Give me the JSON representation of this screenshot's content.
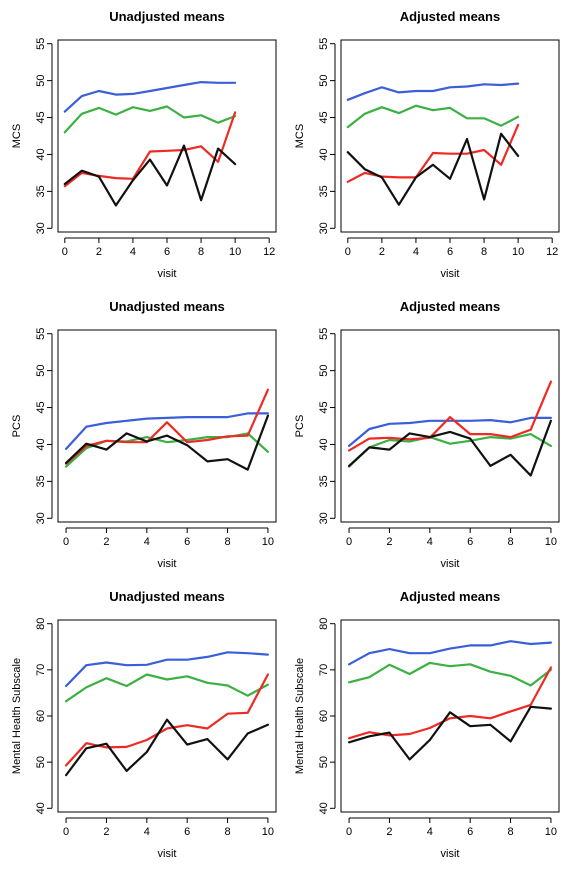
{
  "chart_data": [
    {
      "type": "line",
      "title": "Unadjusted means",
      "xlabel": "visit",
      "ylabel": "MCS",
      "xlim": [
        -0.4,
        12.4
      ],
      "ylim": [
        29.5,
        55.5
      ],
      "xticks": [
        0,
        2,
        4,
        6,
        8,
        10,
        12
      ],
      "yticks": [
        30,
        35,
        40,
        45,
        50,
        55
      ],
      "x": [
        0,
        1,
        2,
        3,
        4,
        5,
        6,
        7,
        8,
        9,
        10
      ],
      "grid": false,
      "series": [
        {
          "color": "#3a5fd9",
          "values": [
            45.8,
            47.9,
            48.6,
            48.1,
            48.2,
            48.6,
            49.0,
            49.4,
            49.8,
            49.7,
            49.7
          ]
        },
        {
          "color": "#3cb043",
          "values": [
            43.0,
            45.5,
            46.3,
            45.4,
            46.4,
            45.9,
            46.5,
            45.0,
            45.3,
            44.3,
            45.2
          ]
        },
        {
          "color": "#ee2a24",
          "values": [
            35.7,
            37.5,
            37.1,
            36.8,
            36.7,
            40.4,
            40.5,
            40.6,
            41.1,
            39.0,
            45.7
          ]
        },
        {
          "color": "#111111",
          "values": [
            36.0,
            37.8,
            37.0,
            33.1,
            36.5,
            39.3,
            35.8,
            41.2,
            33.8,
            40.8,
            38.7
          ]
        }
      ]
    },
    {
      "type": "line",
      "title": "Adjusted means",
      "xlabel": "visit",
      "ylabel": "MCS",
      "xlim": [
        -0.4,
        12.4
      ],
      "ylim": [
        29.5,
        55.5
      ],
      "xticks": [
        0,
        2,
        4,
        6,
        8,
        10,
        12
      ],
      "yticks": [
        30,
        35,
        40,
        45,
        50,
        55
      ],
      "x": [
        0,
        1,
        2,
        3,
        4,
        5,
        6,
        7,
        8,
        9,
        10
      ],
      "grid": false,
      "series": [
        {
          "color": "#3a5fd9",
          "values": [
            47.4,
            48.3,
            49.1,
            48.4,
            48.6,
            48.6,
            49.1,
            49.2,
            49.5,
            49.4,
            49.6
          ]
        },
        {
          "color": "#3cb043",
          "values": [
            43.7,
            45.5,
            46.4,
            45.6,
            46.6,
            46.0,
            46.3,
            44.9,
            44.9,
            43.9,
            45.1
          ]
        },
        {
          "color": "#ee2a24",
          "values": [
            36.3,
            37.5,
            37.0,
            36.9,
            36.9,
            40.2,
            40.1,
            40.1,
            40.6,
            38.6,
            44.0
          ]
        },
        {
          "color": "#111111",
          "values": [
            40.3,
            38.0,
            36.9,
            33.2,
            36.9,
            38.6,
            36.7,
            42.1,
            33.9,
            42.8,
            39.8
          ]
        }
      ]
    },
    {
      "type": "line",
      "title": "Unadjusted means",
      "xlabel": "visit",
      "ylabel": "PCS",
      "xlim": [
        -0.4,
        10.4
      ],
      "ylim": [
        29.5,
        55.5
      ],
      "xticks": [
        0,
        2,
        4,
        6,
        8,
        10
      ],
      "yticks": [
        30,
        35,
        40,
        45,
        50,
        55
      ],
      "x": [
        0,
        1,
        2,
        3,
        4,
        5,
        6,
        7,
        8,
        9,
        10
      ],
      "grid": false,
      "series": [
        {
          "color": "#3a5fd9",
          "values": [
            39.4,
            42.4,
            42.9,
            43.2,
            43.5,
            43.6,
            43.7,
            43.7,
            43.7,
            44.2,
            44.2
          ]
        },
        {
          "color": "#3cb043",
          "values": [
            37.0,
            39.5,
            40.5,
            40.4,
            41.0,
            40.3,
            40.6,
            41.0,
            41.0,
            41.5,
            39.0
          ]
        },
        {
          "color": "#ee2a24",
          "values": [
            37.4,
            39.8,
            40.5,
            40.3,
            40.3,
            43.0,
            40.3,
            40.6,
            41.1,
            41.2,
            47.4
          ]
        },
        {
          "color": "#111111",
          "values": [
            37.5,
            40.1,
            39.3,
            41.5,
            40.4,
            41.2,
            39.9,
            37.7,
            38.0,
            36.6,
            43.9
          ]
        }
      ]
    },
    {
      "type": "line",
      "title": "Adjusted means",
      "xlabel": "visit",
      "ylabel": "PCS",
      "xlim": [
        -0.4,
        10.4
      ],
      "ylim": [
        29.5,
        55.5
      ],
      "xticks": [
        0,
        2,
        4,
        6,
        8,
        10
      ],
      "yticks": [
        30,
        35,
        40,
        45,
        50,
        55
      ],
      "x": [
        0,
        1,
        2,
        3,
        4,
        5,
        6,
        7,
        8,
        9,
        10
      ],
      "grid": false,
      "series": [
        {
          "color": "#3a5fd9",
          "values": [
            39.8,
            42.1,
            42.8,
            42.9,
            43.2,
            43.2,
            43.2,
            43.3,
            43.0,
            43.6,
            43.6
          ]
        },
        {
          "color": "#3cb043",
          "values": [
            37.0,
            39.6,
            40.6,
            40.4,
            41.0,
            40.1,
            40.5,
            41.0,
            40.8,
            41.4,
            39.8
          ]
        },
        {
          "color": "#ee2a24",
          "values": [
            39.2,
            40.8,
            40.9,
            40.7,
            40.9,
            43.7,
            41.4,
            41.4,
            41.0,
            42.0,
            48.5
          ]
        },
        {
          "color": "#111111",
          "values": [
            37.1,
            39.6,
            39.3,
            41.5,
            41.0,
            41.7,
            40.8,
            37.1,
            38.6,
            35.8,
            43.2
          ]
        }
      ]
    },
    {
      "type": "line",
      "title": "Unadjusted means",
      "xlabel": "visit",
      "ylabel": "Mental Health Subscale",
      "xlim": [
        -0.4,
        10.4
      ],
      "ylim": [
        39.2,
        80.8
      ],
      "xticks": [
        0,
        2,
        4,
        6,
        8,
        10
      ],
      "yticks": [
        40,
        50,
        60,
        70,
        80
      ],
      "x": [
        0,
        1,
        2,
        3,
        4,
        5,
        6,
        7,
        8,
        9,
        10
      ],
      "grid": false,
      "series": [
        {
          "color": "#3a5fd9",
          "values": [
            66.5,
            71.0,
            71.6,
            71.0,
            71.1,
            72.2,
            72.2,
            72.8,
            73.8,
            73.6,
            73.3
          ]
        },
        {
          "color": "#3cb043",
          "values": [
            63.2,
            66.2,
            68.2,
            66.5,
            69.0,
            67.9,
            68.6,
            67.2,
            66.6,
            64.4,
            66.8
          ]
        },
        {
          "color": "#ee2a24",
          "values": [
            49.3,
            54.1,
            53.2,
            53.3,
            54.8,
            57.3,
            58.0,
            57.3,
            60.5,
            60.7,
            69.0
          ]
        },
        {
          "color": "#111111",
          "values": [
            47.2,
            53.0,
            54.0,
            48.1,
            52.2,
            59.2,
            53.8,
            55.0,
            50.6,
            56.2,
            58.1
          ]
        }
      ]
    },
    {
      "type": "line",
      "title": "Adjusted means",
      "xlabel": "visit",
      "ylabel": "Mental Health Subscale",
      "xlim": [
        -0.4,
        10.4
      ],
      "ylim": [
        39.2,
        80.8
      ],
      "xticks": [
        0,
        2,
        4,
        6,
        8,
        10
      ],
      "yticks": [
        40,
        50,
        60,
        70,
        80
      ],
      "x": [
        0,
        1,
        2,
        3,
        4,
        5,
        6,
        7,
        8,
        9,
        10
      ],
      "grid": false,
      "series": [
        {
          "color": "#3a5fd9",
          "values": [
            71.2,
            73.6,
            74.5,
            73.6,
            73.6,
            74.6,
            75.3,
            75.3,
            76.2,
            75.6,
            75.9
          ]
        },
        {
          "color": "#3cb043",
          "values": [
            67.3,
            68.4,
            71.1,
            69.1,
            71.5,
            70.8,
            71.2,
            69.6,
            68.7,
            66.6,
            70.0
          ]
        },
        {
          "color": "#ee2a24",
          "values": [
            55.2,
            56.5,
            55.8,
            56.1,
            57.4,
            59.5,
            60.0,
            59.5,
            61.0,
            62.4,
            70.5
          ]
        },
        {
          "color": "#111111",
          "values": [
            54.3,
            55.6,
            56.4,
            50.6,
            54.8,
            60.8,
            57.8,
            58.1,
            54.5,
            62.0,
            61.6
          ]
        }
      ]
    }
  ]
}
